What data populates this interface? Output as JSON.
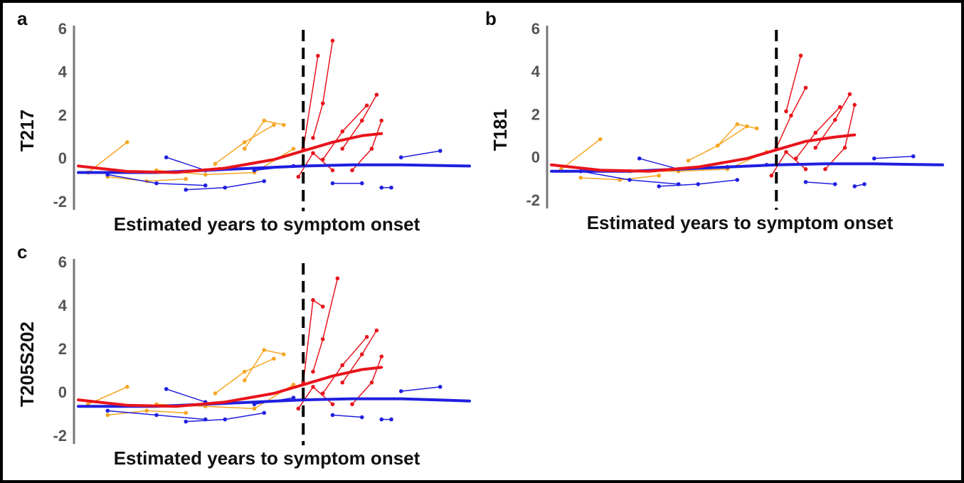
{
  "chart_data": [
    {
      "type": "line",
      "label": "a",
      "ylabel": "T217",
      "xlabel": "Estimated years to symptom onset",
      "xlim": [
        -23,
        17
      ],
      "ylim": [
        -2,
        6
      ],
      "yticks": [
        -2,
        0,
        2,
        4,
        6
      ],
      "vline": 0,
      "series": [
        {
          "color": "#f5a623",
          "linewidth": 1.5,
          "markers": true,
          "x": [
            -6,
            -4,
            -2
          ],
          "values": [
            0.5,
            1.8,
            1.6
          ]
        },
        {
          "color": "#f5a623",
          "linewidth": 1.5,
          "markers": true,
          "x": [
            -9,
            -6,
            -3
          ],
          "values": [
            -0.2,
            0.8,
            1.6
          ]
        },
        {
          "color": "#f5a623",
          "linewidth": 1.5,
          "markers": true,
          "x": [
            -20,
            -16,
            -12
          ],
          "values": [
            -0.8,
            -1,
            -0.9
          ]
        },
        {
          "color": "#f5a623",
          "linewidth": 1.5,
          "markers": true,
          "x": [
            -15,
            -10,
            -5,
            -1
          ],
          "values": [
            -0.5,
            -0.7,
            -0.6,
            0.5
          ]
        },
        {
          "color": "#f5a623",
          "linewidth": 1.5,
          "markers": true,
          "x": [
            -22,
            -18
          ],
          "values": [
            -0.6,
            0.8
          ]
        },
        {
          "color": "#1f1fe0",
          "linewidth": 1.5,
          "markers": true,
          "x": [
            -20,
            -15,
            -10
          ],
          "values": [
            -0.7,
            -1.1,
            -1.2
          ]
        },
        {
          "color": "#1f1fe0",
          "linewidth": 1.5,
          "markers": true,
          "x": [
            -12,
            -8,
            -4
          ],
          "values": [
            -1.4,
            -1.3,
            -1.0
          ]
        },
        {
          "color": "#1f1fe0",
          "linewidth": 1.5,
          "markers": true,
          "x": [
            -14,
            -10
          ],
          "values": [
            0.1,
            -0.5
          ]
        },
        {
          "color": "#1f1fe0",
          "linewidth": 1.5,
          "markers": true,
          "x": [
            3,
            6
          ],
          "values": [
            -1.1,
            -1.1
          ]
        },
        {
          "color": "#1f1fe0",
          "linewidth": 1.5,
          "markers": true,
          "x": [
            8,
            9
          ],
          "values": [
            -1.3,
            -1.3
          ]
        },
        {
          "color": "#1f1fe0",
          "linewidth": 1.5,
          "markers": true,
          "x": [
            10,
            14
          ],
          "values": [
            0.1,
            0.4
          ]
        },
        {
          "color": "#1f1fe0",
          "linewidth": 1.5,
          "markers": true,
          "x": [
            -5,
            -1
          ],
          "values": [
            -0.5,
            -0.3
          ]
        },
        {
          "color": "#e8141c",
          "linewidth": 1.5,
          "markers": true,
          "x": [
            0,
            1.5
          ],
          "values": [
            0.5,
            4.8
          ]
        },
        {
          "color": "#e8141c",
          "linewidth": 1.5,
          "markers": true,
          "x": [
            1,
            2,
            3
          ],
          "values": [
            1,
            2.6,
            5.5
          ]
        },
        {
          "color": "#e8141c",
          "linewidth": 1.5,
          "markers": true,
          "x": [
            4,
            6,
            7.5
          ],
          "values": [
            0.5,
            1.8,
            3.0
          ]
        },
        {
          "color": "#e8141c",
          "linewidth": 1.5,
          "markers": true,
          "x": [
            2,
            4,
            6.5
          ],
          "values": [
            0,
            1.3,
            2.5
          ]
        },
        {
          "color": "#e8141c",
          "linewidth": 1.5,
          "markers": true,
          "x": [
            -0.5,
            1,
            3
          ],
          "values": [
            -0.8,
            0.3,
            -0.5
          ]
        },
        {
          "color": "#e8141c",
          "linewidth": 1.5,
          "markers": true,
          "x": [
            5,
            7,
            8
          ],
          "values": [
            -0.5,
            0.5,
            1.8
          ]
        },
        {
          "color": "#1f1fe0",
          "linewidth": 4,
          "markers": false,
          "x": [
            -23,
            -15,
            -5,
            0,
            5,
            10,
            17
          ],
          "values": [
            -0.6,
            -0.6,
            -0.4,
            -0.3,
            -0.25,
            -0.25,
            -0.3
          ]
        },
        {
          "color": "#e8141c",
          "linewidth": 4,
          "markers": false,
          "x": [
            -23,
            -18,
            -13,
            -8,
            -3,
            0,
            3,
            6,
            8
          ],
          "values": [
            -0.3,
            -0.55,
            -0.6,
            -0.4,
            0,
            0.4,
            0.8,
            1.1,
            1.2
          ]
        }
      ]
    },
    {
      "type": "line",
      "label": "b",
      "ylabel": "T181",
      "xlabel": "Estimated years to symptom onset",
      "xlim": [
        -23,
        17
      ],
      "ylim": [
        -2,
        6
      ],
      "yticks": [
        -2,
        0,
        2,
        4,
        6
      ],
      "vline": 0,
      "series": [
        {
          "color": "#f5a623",
          "linewidth": 1.5,
          "markers": true,
          "x": [
            -6,
            -4,
            -2
          ],
          "values": [
            0.6,
            1.6,
            1.4
          ]
        },
        {
          "color": "#f5a623",
          "linewidth": 1.5,
          "markers": true,
          "x": [
            -9,
            -6,
            -3
          ],
          "values": [
            -0.1,
            0.6,
            1.5
          ]
        },
        {
          "color": "#f5a623",
          "linewidth": 1.5,
          "markers": true,
          "x": [
            -20,
            -16,
            -12
          ],
          "values": [
            -0.9,
            -1,
            -0.8
          ]
        },
        {
          "color": "#f5a623",
          "linewidth": 1.5,
          "markers": true,
          "x": [
            -15,
            -10,
            -5,
            -1
          ],
          "values": [
            -0.6,
            -0.6,
            -0.5,
            0.3
          ]
        },
        {
          "color": "#f5a623",
          "linewidth": 1.5,
          "markers": true,
          "x": [
            -22,
            -18
          ],
          "values": [
            -0.5,
            0.9
          ]
        },
        {
          "color": "#1f1fe0",
          "linewidth": 1.5,
          "markers": true,
          "x": [
            -20,
            -15,
            -10
          ],
          "values": [
            -0.6,
            -1.0,
            -1.2
          ]
        },
        {
          "color": "#1f1fe0",
          "linewidth": 1.5,
          "markers": true,
          "x": [
            -12,
            -8,
            -4
          ],
          "values": [
            -1.3,
            -1.2,
            -1.0
          ]
        },
        {
          "color": "#1f1fe0",
          "linewidth": 1.5,
          "markers": true,
          "x": [
            -14,
            -10
          ],
          "values": [
            0.0,
            -0.5
          ]
        },
        {
          "color": "#1f1fe0",
          "linewidth": 1.5,
          "markers": true,
          "x": [
            3,
            6
          ],
          "values": [
            -1.1,
            -1.2
          ]
        },
        {
          "color": "#1f1fe0",
          "linewidth": 1.5,
          "markers": true,
          "x": [
            8,
            9
          ],
          "values": [
            -1.3,
            -1.2
          ]
        },
        {
          "color": "#1f1fe0",
          "linewidth": 1.5,
          "markers": true,
          "x": [
            10,
            14
          ],
          "values": [
            0.0,
            0.1
          ]
        },
        {
          "color": "#1f1fe0",
          "linewidth": 1.5,
          "markers": true,
          "x": [
            -5,
            -1
          ],
          "values": [
            -0.4,
            -0.3
          ]
        },
        {
          "color": "#e8141c",
          "linewidth": 1.5,
          "markers": true,
          "x": [
            0,
            1.5,
            3
          ],
          "values": [
            0.5,
            2.0,
            3.3
          ]
        },
        {
          "color": "#e8141c",
          "linewidth": 1.5,
          "markers": true,
          "x": [
            1,
            2.5
          ],
          "values": [
            2.2,
            4.8
          ]
        },
        {
          "color": "#e8141c",
          "linewidth": 1.5,
          "markers": true,
          "x": [
            4,
            6,
            7.5
          ],
          "values": [
            0.5,
            1.8,
            3.0
          ]
        },
        {
          "color": "#e8141c",
          "linewidth": 1.5,
          "markers": true,
          "x": [
            2,
            4,
            6.5
          ],
          "values": [
            0,
            1.2,
            2.4
          ]
        },
        {
          "color": "#e8141c",
          "linewidth": 1.5,
          "markers": true,
          "x": [
            -0.5,
            1,
            3
          ],
          "values": [
            -0.8,
            0.3,
            -0.5
          ]
        },
        {
          "color": "#e8141c",
          "linewidth": 1.5,
          "markers": true,
          "x": [
            5,
            7,
            8
          ],
          "values": [
            -0.5,
            0.5,
            2.5
          ]
        },
        {
          "color": "#1f1fe0",
          "linewidth": 4,
          "markers": false,
          "x": [
            -23,
            -15,
            -5,
            0,
            5,
            10,
            17
          ],
          "values": [
            -0.6,
            -0.6,
            -0.4,
            -0.3,
            -0.25,
            -0.25,
            -0.3
          ]
        },
        {
          "color": "#e8141c",
          "linewidth": 4,
          "markers": false,
          "x": [
            -23,
            -18,
            -13,
            -8,
            -3,
            0,
            3,
            6,
            8
          ],
          "values": [
            -0.3,
            -0.55,
            -0.6,
            -0.4,
            0,
            0.4,
            0.8,
            1.0,
            1.1
          ]
        }
      ]
    },
    {
      "type": "line",
      "label": "c",
      "ylabel": "T205S202",
      "xlabel": "Estimated years to symptom onset",
      "xlim": [
        -23,
        17
      ],
      "ylim": [
        -2,
        6
      ],
      "yticks": [
        -2,
        0,
        2,
        4,
        6
      ],
      "vline": 0,
      "series": [
        {
          "color": "#f5a623",
          "linewidth": 1.5,
          "markers": true,
          "x": [
            -6,
            -4,
            -2
          ],
          "values": [
            0.6,
            2.0,
            1.8
          ]
        },
        {
          "color": "#f5a623",
          "linewidth": 1.5,
          "markers": true,
          "x": [
            -9,
            -6,
            -3
          ],
          "values": [
            0.0,
            1.0,
            1.6
          ]
        },
        {
          "color": "#f5a623",
          "linewidth": 1.5,
          "markers": true,
          "x": [
            -20,
            -16,
            -12
          ],
          "values": [
            -1.0,
            -0.8,
            -0.9
          ]
        },
        {
          "color": "#f5a623",
          "linewidth": 1.5,
          "markers": true,
          "x": [
            -15,
            -10,
            -5,
            -1
          ],
          "values": [
            -0.5,
            -0.6,
            -0.7,
            0.4
          ]
        },
        {
          "color": "#f5a623",
          "linewidth": 1.5,
          "markers": true,
          "x": [
            -22,
            -18
          ],
          "values": [
            -0.5,
            0.3
          ]
        },
        {
          "color": "#1f1fe0",
          "linewidth": 1.5,
          "markers": true,
          "x": [
            -20,
            -15,
            -10
          ],
          "values": [
            -0.8,
            -1.0,
            -1.2
          ]
        },
        {
          "color": "#1f1fe0",
          "linewidth": 1.5,
          "markers": true,
          "x": [
            -12,
            -8,
            -4
          ],
          "values": [
            -1.3,
            -1.2,
            -0.9
          ]
        },
        {
          "color": "#1f1fe0",
          "linewidth": 1.5,
          "markers": true,
          "x": [
            -14,
            -10
          ],
          "values": [
            0.2,
            -0.4
          ]
        },
        {
          "color": "#1f1fe0",
          "linewidth": 1.5,
          "markers": true,
          "x": [
            3,
            6
          ],
          "values": [
            -1.0,
            -1.1
          ]
        },
        {
          "color": "#1f1fe0",
          "linewidth": 1.5,
          "markers": true,
          "x": [
            8,
            9
          ],
          "values": [
            -1.2,
            -1.2
          ]
        },
        {
          "color": "#1f1fe0",
          "linewidth": 1.5,
          "markers": true,
          "x": [
            10,
            14
          ],
          "values": [
            0.1,
            0.3
          ]
        },
        {
          "color": "#1f1fe0",
          "linewidth": 1.5,
          "markers": true,
          "x": [
            -5,
            -1
          ],
          "values": [
            -0.5,
            -0.2
          ]
        },
        {
          "color": "#e8141c",
          "linewidth": 1.5,
          "markers": true,
          "x": [
            0,
            1,
            2
          ],
          "values": [
            0.5,
            4.3,
            4.0
          ]
        },
        {
          "color": "#e8141c",
          "linewidth": 1.5,
          "markers": true,
          "x": [
            1,
            2,
            3.5
          ],
          "values": [
            1,
            2.5,
            5.3
          ]
        },
        {
          "color": "#e8141c",
          "linewidth": 1.5,
          "markers": true,
          "x": [
            4,
            6,
            7.5
          ],
          "values": [
            0.5,
            1.8,
            2.9
          ]
        },
        {
          "color": "#e8141c",
          "linewidth": 1.5,
          "markers": true,
          "x": [
            2,
            4,
            6.5
          ],
          "values": [
            0,
            1.3,
            2.6
          ]
        },
        {
          "color": "#e8141c",
          "linewidth": 1.5,
          "markers": true,
          "x": [
            -0.5,
            1,
            3
          ],
          "values": [
            -0.7,
            0.3,
            -0.5
          ]
        },
        {
          "color": "#e8141c",
          "linewidth": 1.5,
          "markers": true,
          "x": [
            5,
            7,
            8
          ],
          "values": [
            -0.5,
            0.5,
            1.7
          ]
        },
        {
          "color": "#1f1fe0",
          "linewidth": 4,
          "markers": false,
          "x": [
            -23,
            -15,
            -5,
            0,
            5,
            10,
            17
          ],
          "values": [
            -0.6,
            -0.6,
            -0.4,
            -0.3,
            -0.25,
            -0.25,
            -0.35
          ]
        },
        {
          "color": "#e8141c",
          "linewidth": 4,
          "markers": false,
          "x": [
            -23,
            -18,
            -13,
            -8,
            -3,
            0,
            3,
            6,
            8
          ],
          "values": [
            -0.3,
            -0.55,
            -0.6,
            -0.4,
            0,
            0.4,
            0.8,
            1.1,
            1.2
          ]
        }
      ]
    }
  ]
}
